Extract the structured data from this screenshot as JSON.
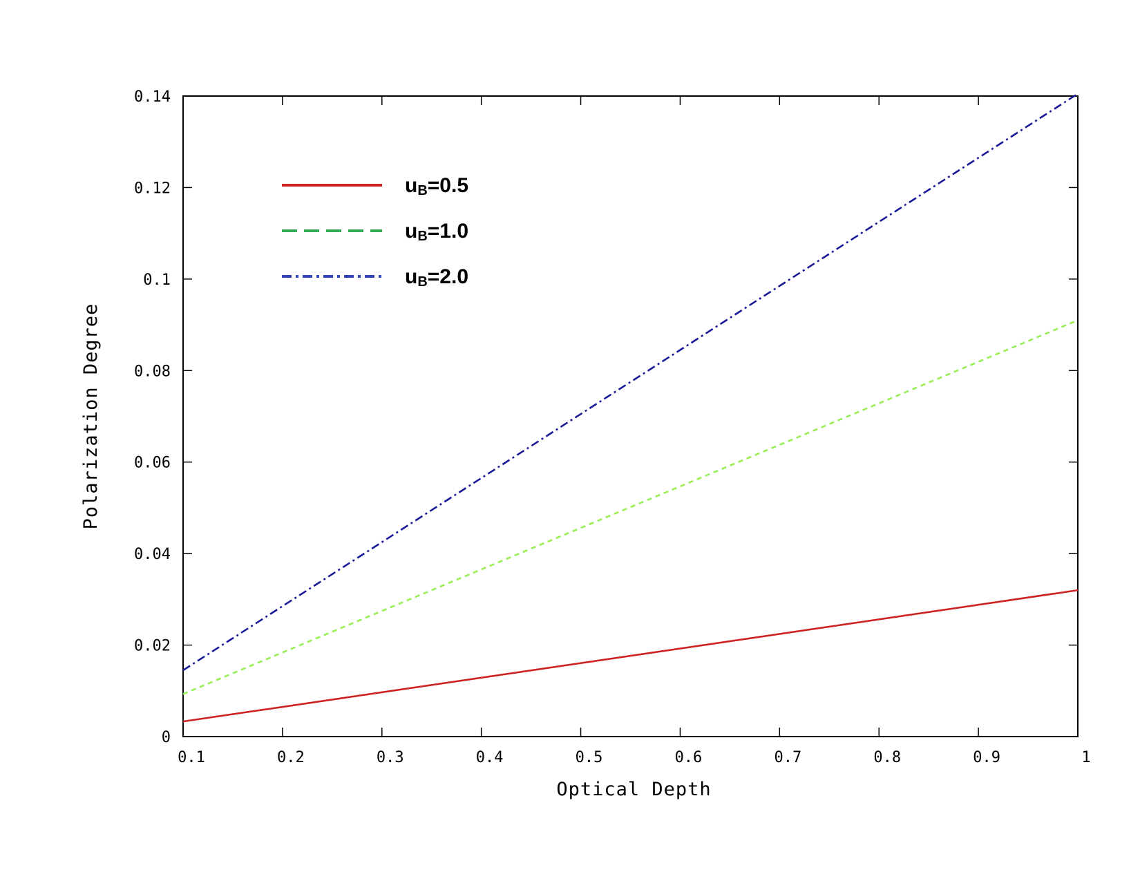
{
  "chart_data": {
    "type": "line",
    "title": "",
    "xlabel": "Optical Depth",
    "ylabel": "Polarization Degree",
    "xlim": [
      0.1,
      1
    ],
    "ylim": [
      0,
      0.14
    ],
    "x_ticks": [
      "0.1",
      "0.2",
      "0.3",
      "0.4",
      "0.5",
      "0.6",
      "0.7",
      "0.8",
      "0.9",
      "1"
    ],
    "y_ticks": [
      "0",
      "0.02",
      "0.04",
      "0.06",
      "0.08",
      "0.1",
      "0.12",
      "0.14"
    ],
    "grid": false,
    "legend_position": "top-left",
    "series": [
      {
        "name": "u_B=0.5",
        "label_main": "u",
        "label_sub": "B",
        "label_rest": "=0.5",
        "color": "#cc2222",
        "dash": "solid",
        "legend_dash": "solid",
        "x": [
          0.1,
          1.0
        ],
        "y": [
          0.0033,
          0.032
        ]
      },
      {
        "name": "u_B=1.0",
        "label_main": "u",
        "label_sub": "B",
        "label_rest": "=1.0",
        "color": "#99ee55",
        "legend_color": "#33aa55",
        "dash": "dashed",
        "legend_dash": "dashed",
        "x": [
          0.1,
          1.0
        ],
        "y": [
          0.0093,
          0.091
        ]
      },
      {
        "name": "u_B=2.0",
        "label_main": "u",
        "label_sub": "B",
        "label_rest": "=2.0",
        "color": "#1a1a99",
        "legend_color": "#3344bb",
        "dash": "dashdot",
        "legend_dash": "dashdot",
        "x": [
          0.1,
          1.0
        ],
        "y": [
          0.0145,
          0.1405
        ]
      }
    ]
  }
}
